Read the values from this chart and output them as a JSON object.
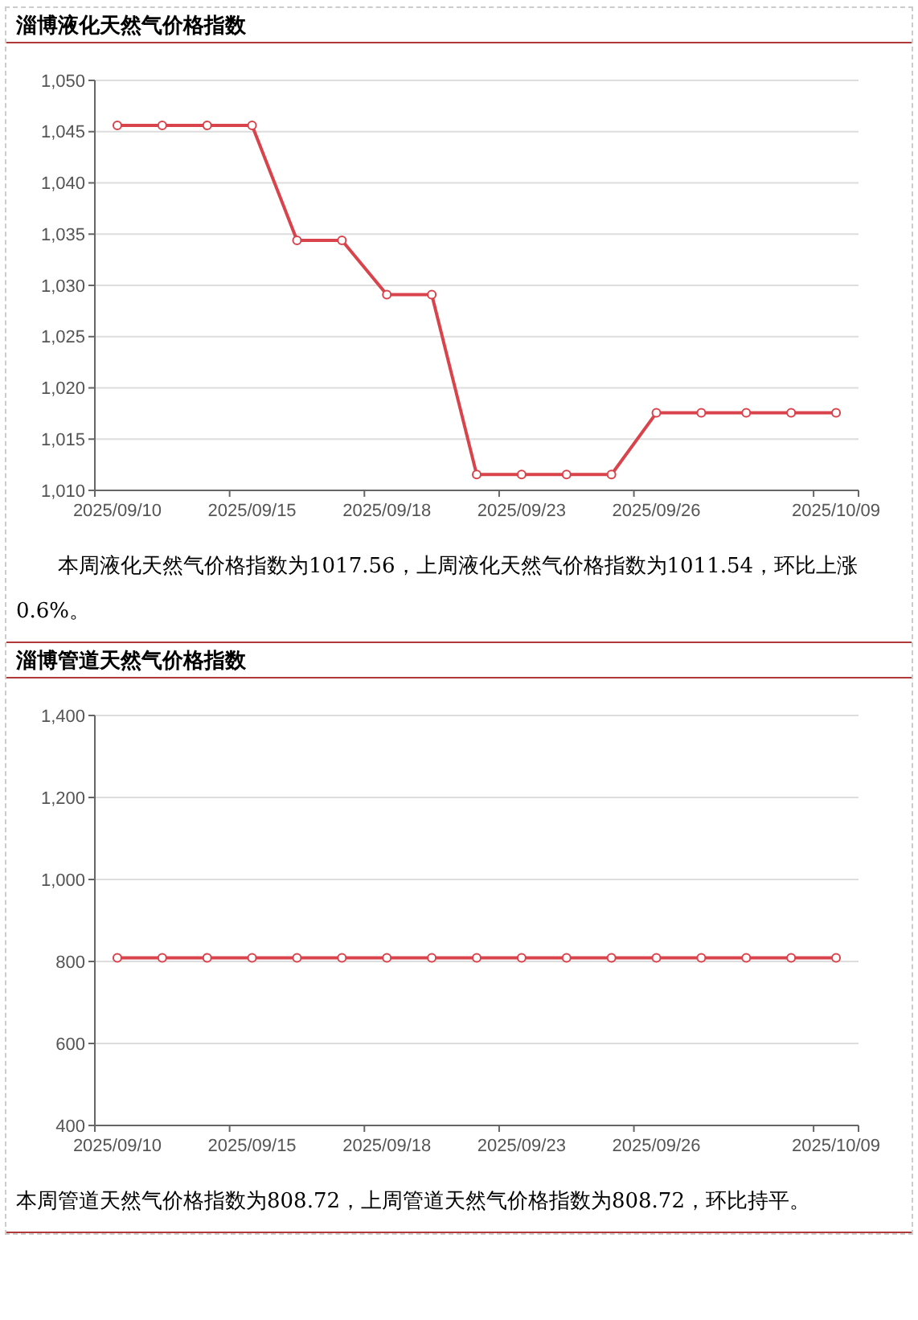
{
  "chart_data": [
    {
      "type": "line",
      "title": "淄博液化天然气价格指数",
      "categories": [
        "2025/09/10",
        null,
        null,
        "2025/09/15",
        null,
        null,
        "2025/09/18",
        null,
        null,
        "2025/09/23",
        null,
        null,
        "2025/09/26",
        null,
        null,
        null,
        "2025/10/09"
      ],
      "series": [
        {
          "color": "#d9434b",
          "values": [
            1045.6,
            1045.6,
            1045.6,
            1045.6,
            1034.4,
            1034.4,
            1029.1,
            1029.1,
            1011.54,
            1011.54,
            1011.54,
            1011.54,
            1017.56,
            1017.56,
            1017.56,
            1017.56,
            1017.56
          ]
        }
      ],
      "ylim": [
        1010,
        1050
      ],
      "yticks": [
        {
          "value": 1010,
          "label": "1,010"
        },
        {
          "value": 1015,
          "label": "1,015"
        },
        {
          "value": 1020,
          "label": "1,020"
        },
        {
          "value": 1025,
          "label": "1,025"
        },
        {
          "value": 1030,
          "label": "1,030"
        },
        {
          "value": 1035,
          "label": "1,035"
        },
        {
          "value": 1040,
          "label": "1,040"
        },
        {
          "value": 1045,
          "label": "1,045"
        },
        {
          "value": 1050,
          "label": "1,050"
        }
      ],
      "grid": "y",
      "marker": "circle",
      "line_style": "solid",
      "annotations": [
        "本周液化天然气价格指数为1017.56，上周液化天然气价格指数为1011.54，环比上涨0.6%。"
      ]
    },
    {
      "type": "line",
      "title": "淄博管道天然气价格指数",
      "categories": [
        "2025/09/10",
        null,
        null,
        "2025/09/15",
        null,
        null,
        "2025/09/18",
        null,
        null,
        "2025/09/23",
        null,
        null,
        "2025/09/26",
        null,
        null,
        null,
        "2025/10/09"
      ],
      "series": [
        {
          "color": "#d9434b",
          "values": [
            808.72,
            808.72,
            808.72,
            808.72,
            808.72,
            808.72,
            808.72,
            808.72,
            808.72,
            808.72,
            808.72,
            808.72,
            808.72,
            808.72,
            808.72,
            808.72,
            808.72
          ]
        }
      ],
      "ylim": [
        400,
        1400
      ],
      "yticks": [
        400,
        600,
        800,
        {
          "value": 1000,
          "label": "1,000"
        },
        {
          "value": 1200,
          "label": "1,200"
        },
        {
          "value": 1400,
          "label": "1,400"
        }
      ],
      "grid": "y",
      "marker": "circle",
      "line_style": "solid",
      "annotations": [
        "本周管道天然气价格指数为808.72，上周管道天然气价格指数为808.72，环比持平。"
      ]
    }
  ]
}
